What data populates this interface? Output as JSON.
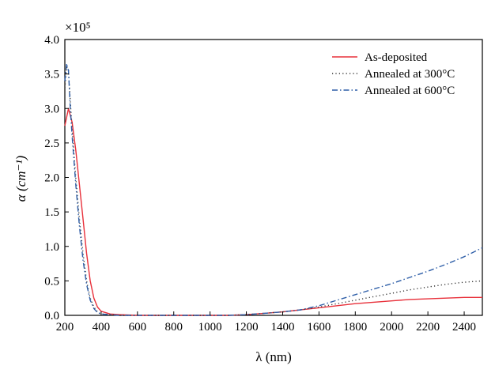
{
  "chart_data": {
    "type": "line",
    "xlabel": "λ (nm)",
    "ylabel": "α (cm⁻¹)",
    "y_multiplier_label": "×10⁵",
    "xlim": [
      200,
      2500
    ],
    "ylim": [
      0,
      4.0
    ],
    "x_ticks": [
      200,
      400,
      600,
      800,
      1000,
      1200,
      1400,
      1600,
      1800,
      2000,
      2200,
      2400
    ],
    "y_ticks": [
      "0.0",
      "0.5",
      "1.0",
      "1.5",
      "2.0",
      "2.5",
      "3.0",
      "3.5",
      "4.0"
    ],
    "grid": false,
    "legend_position": "top-right",
    "series": [
      {
        "name": "As-deposited",
        "color": "#e8303a",
        "style": "solid",
        "x": [
          200,
          220,
          240,
          260,
          280,
          300,
          320,
          340,
          360,
          380,
          400,
          450,
          500,
          600,
          700,
          800,
          900,
          1000,
          1100,
          1200,
          1300,
          1400,
          1500,
          1600,
          1700,
          1800,
          1900,
          2000,
          2100,
          2200,
          2300,
          2400,
          2500
        ],
        "y": [
          2.75,
          3.0,
          2.8,
          2.4,
          1.9,
          1.4,
          0.9,
          0.5,
          0.25,
          0.12,
          0.06,
          0.02,
          0.01,
          0.0,
          0.0,
          0.0,
          0.0,
          0.0,
          0.0,
          0.01,
          0.03,
          0.05,
          0.08,
          0.11,
          0.14,
          0.17,
          0.19,
          0.21,
          0.23,
          0.24,
          0.25,
          0.26,
          0.26
        ]
      },
      {
        "name": "Annealed at 300°C",
        "color": "#333333",
        "style": "dotted",
        "x": [
          200,
          210,
          220,
          230,
          240,
          260,
          280,
          300,
          320,
          340,
          360,
          380,
          400,
          450,
          500,
          600,
          700,
          800,
          900,
          1000,
          1100,
          1200,
          1300,
          1400,
          1500,
          1600,
          1700,
          1800,
          1900,
          2000,
          2100,
          2200,
          2300,
          2400,
          2500
        ],
        "y": [
          3.3,
          3.6,
          3.55,
          3.1,
          2.7,
          2.0,
          1.4,
          0.9,
          0.5,
          0.25,
          0.12,
          0.05,
          0.02,
          0.01,
          0.0,
          0.0,
          0.0,
          0.0,
          0.0,
          0.0,
          0.0,
          0.01,
          0.03,
          0.05,
          0.08,
          0.12,
          0.17,
          0.22,
          0.27,
          0.32,
          0.37,
          0.41,
          0.45,
          0.48,
          0.5
        ]
      },
      {
        "name": "Annealed at 600°C",
        "color": "#2f5fa8",
        "style": "dashdot",
        "x": [
          200,
          210,
          220,
          230,
          240,
          260,
          280,
          300,
          320,
          340,
          360,
          380,
          400,
          450,
          500,
          600,
          700,
          800,
          900,
          1000,
          1100,
          1200,
          1300,
          1400,
          1500,
          1600,
          1700,
          1800,
          1900,
          2000,
          2100,
          2200,
          2300,
          2400,
          2500
        ],
        "y": [
          3.4,
          3.65,
          3.55,
          3.0,
          2.6,
          1.9,
          1.3,
          0.8,
          0.45,
          0.22,
          0.1,
          0.04,
          0.02,
          0.01,
          0.0,
          0.0,
          0.0,
          0.0,
          0.0,
          0.0,
          0.0,
          0.01,
          0.03,
          0.05,
          0.08,
          0.14,
          0.22,
          0.3,
          0.38,
          0.46,
          0.55,
          0.64,
          0.74,
          0.85,
          0.98
        ]
      }
    ]
  }
}
